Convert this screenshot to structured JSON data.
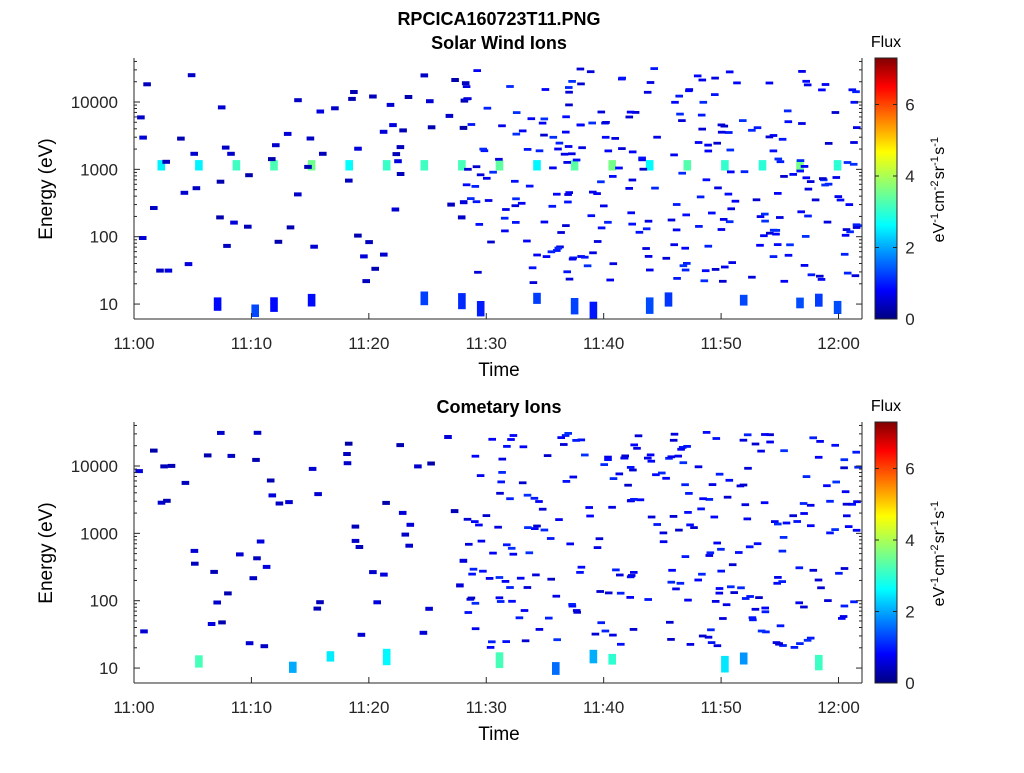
{
  "figure_title": "RPCICA160723T11.PNG",
  "chart_data": [
    {
      "type": "heatmap",
      "title": "Solar Wind Ions",
      "xlabel": "Time",
      "ylabel": "Energy (eV)",
      "x_ticks": [
        "11:00",
        "11:10",
        "11:20",
        "11:30",
        "11:40",
        "11:50",
        "12:00"
      ],
      "xlim": [
        "11:00",
        "12:02"
      ],
      "yscale": "log",
      "y_ticks": [
        10,
        100,
        1000,
        10000
      ],
      "ylim": [
        6,
        45000
      ],
      "grid": false,
      "colorbar": {
        "label": "Flux",
        "unit": "eV-1cm-2sr-1s-1",
        "ticks": [
          0,
          2,
          4,
          6
        ],
        "range": [
          0,
          7.3
        ],
        "colormap": "jet"
      },
      "summary": {
        "steady_band_energy_eV": 1150,
        "steady_band_level": 3.3,
        "low_energy_band_eV": 10,
        "sparse_noise_after": "11:28"
      }
    },
    {
      "type": "heatmap",
      "title": "Cometary Ions",
      "xlabel": "Time",
      "ylabel": "Energy (eV)",
      "x_ticks": [
        "11:00",
        "11:10",
        "11:20",
        "11:30",
        "11:40",
        "11:50",
        "12:00"
      ],
      "xlim": [
        "11:00",
        "12:02"
      ],
      "yscale": "log",
      "y_ticks": [
        10,
        100,
        1000,
        10000
      ],
      "ylim": [
        6,
        45000
      ],
      "grid": false,
      "colorbar": {
        "label": "Flux",
        "unit": "eV-1cm-2sr-1s-1",
        "ticks": [
          0,
          2,
          4,
          6
        ],
        "range": [
          0,
          7.3
        ],
        "colormap": "jet"
      },
      "summary": {
        "low_energy_band_eV": 12,
        "low_energy_band_level": 2.6,
        "sparse_noise_after": "11:28"
      }
    }
  ]
}
